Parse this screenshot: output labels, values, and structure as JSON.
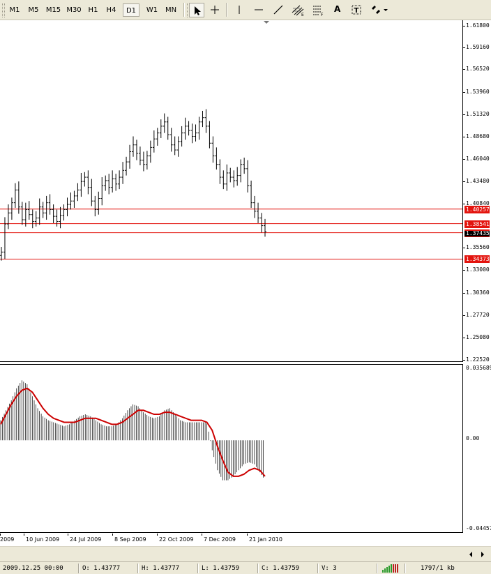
{
  "toolbar": {
    "timeframes": [
      {
        "label": "M1",
        "active": false
      },
      {
        "label": "M5",
        "active": false
      },
      {
        "label": "M15",
        "active": false
      },
      {
        "label": "M30",
        "active": false
      },
      {
        "label": "H1",
        "active": false
      },
      {
        "label": "H4",
        "active": false
      },
      {
        "label": "D1",
        "active": true
      },
      {
        "label": "W1",
        "active": false
      },
      {
        "label": "MN",
        "active": false
      }
    ],
    "tools": [
      "cursor-icon",
      "crosshair-icon",
      "vertical-line-icon",
      "horizontal-line-icon",
      "trendline-icon",
      "channel-icon",
      "fibonacci-icon",
      "text-icon",
      "text-label-icon",
      "arrows-icon"
    ],
    "text_tool_glyph": "A",
    "label_tool_glyph": "T",
    "channel_badge": "E",
    "fib_badge": "F"
  },
  "price_axis": {
    "labels": [
      "1.61800",
      "1.59160",
      "1.56520",
      "1.53960",
      "1.51320",
      "1.48680",
      "1.46040",
      "1.43480",
      "1.40840",
      "1.35560",
      "1.33000",
      "1.30360",
      "1.27720",
      "1.25080",
      "1.22520"
    ]
  },
  "horizontal_lines": [
    {
      "price": "1.40257",
      "color": "#e3140e"
    },
    {
      "price": "1.38541",
      "color": "#e3140e"
    },
    {
      "price": "1.37478",
      "color": "#e3140e"
    },
    {
      "price": "1.34373",
      "color": "#e3140e"
    }
  ],
  "current_price_label": "1.37435",
  "indicator_axis": {
    "labels": [
      "0.035689",
      "0.00",
      "-0.04457"
    ]
  },
  "time_axis": {
    "labels": [
      "2009",
      "10 Jun 2009",
      "24 Jul 2009",
      "8 Sep 2009",
      "22 Oct 2009",
      "7 Dec 2009",
      "21 Jan 2010"
    ]
  },
  "chart_data": {
    "type": "bar",
    "symbol_timeframe": "D1",
    "price_range": [
      1.2252,
      1.618
    ],
    "candles_close": [
      1.352,
      1.385,
      1.398,
      1.41,
      1.425,
      1.405,
      1.39,
      1.402,
      1.396,
      1.388,
      1.392,
      1.405,
      1.398,
      1.41,
      1.402,
      1.394,
      1.388,
      1.395,
      1.402,
      1.408,
      1.412,
      1.418,
      1.425,
      1.435,
      1.44,
      1.428,
      1.412,
      1.402,
      1.415,
      1.43,
      1.436,
      1.428,
      1.438,
      1.432,
      1.44,
      1.448,
      1.458,
      1.47,
      1.478,
      1.468,
      1.46,
      1.455,
      1.465,
      1.475,
      1.485,
      1.492,
      1.5,
      1.505,
      1.49,
      1.478,
      1.472,
      1.482,
      1.492,
      1.5,
      1.495,
      1.488,
      1.492,
      1.505,
      1.51,
      1.5,
      1.48,
      1.465,
      1.455,
      1.44,
      1.432,
      1.445,
      1.44,
      1.436,
      1.442,
      1.455,
      1.45,
      1.43,
      1.41,
      1.4,
      1.392,
      1.383,
      1.376
    ],
    "indicator": {
      "name_visible": false,
      "range": [
        -0.04457,
        0.035689
      ],
      "histogram": [
        0.01,
        0.015,
        0.02,
        0.026,
        0.03,
        0.028,
        0.022,
        0.016,
        0.012,
        0.01,
        0.009,
        0.008,
        0.007,
        0.008,
        0.01,
        0.012,
        0.013,
        0.012,
        0.01,
        0.008,
        0.007,
        0.007,
        0.008,
        0.011,
        0.015,
        0.018,
        0.017,
        0.014,
        0.012,
        0.011,
        0.012,
        0.015,
        0.016,
        0.013,
        0.01,
        0.009,
        0.009,
        0.009,
        0.009,
        0.009,
        -0.005,
        -0.015,
        -0.02,
        -0.02,
        -0.018,
        -0.015,
        -0.012,
        -0.011,
        -0.012,
        -0.016,
        -0.02
      ],
      "signal": [
        0.008,
        0.013,
        0.018,
        0.022,
        0.025,
        0.026,
        0.024,
        0.02,
        0.016,
        0.013,
        0.011,
        0.01,
        0.009,
        0.009,
        0.009,
        0.01,
        0.011,
        0.011,
        0.011,
        0.01,
        0.009,
        0.008,
        0.008,
        0.009,
        0.011,
        0.013,
        0.015,
        0.015,
        0.014,
        0.013,
        0.013,
        0.014,
        0.014,
        0.013,
        0.012,
        0.011,
        0.01,
        0.01,
        0.01,
        0.009,
        0.005,
        -0.003,
        -0.01,
        -0.016,
        -0.018,
        -0.018,
        -0.017,
        -0.015,
        -0.014,
        -0.015,
        -0.018
      ],
      "signal_color": "#cc0000"
    }
  },
  "status_bar": {
    "datetime": "2009.12.25 00:00",
    "open": "O: 1.43777",
    "high": "H: 1.43777",
    "low": "L: 1.43759",
    "close": "C: 1.43759",
    "volume": "V: 3",
    "traffic": "1797/1 kb"
  },
  "colors": {
    "accent_red": "#e3140e",
    "bars": "#000000",
    "background": "#ffffff"
  }
}
